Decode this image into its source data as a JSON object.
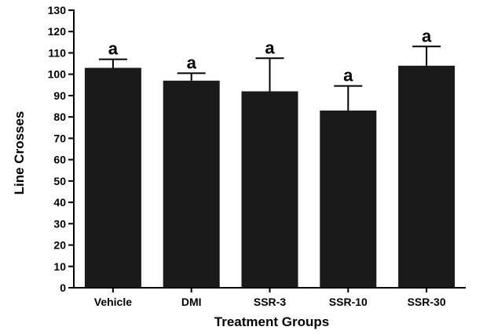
{
  "chart_data": {
    "type": "bar",
    "title": "",
    "xlabel": "Treatment Groups",
    "ylabel": "Line Crosses",
    "ylim": [
      0,
      130
    ],
    "yticks": [
      0,
      10,
      20,
      30,
      40,
      50,
      60,
      70,
      80,
      90,
      100,
      110,
      120,
      130
    ],
    "categories": [
      "Vehicle",
      "DMI",
      "SSR-3",
      "SSR-10",
      "SSR-30"
    ],
    "values": [
      103,
      97,
      92,
      83,
      104
    ],
    "error_upper": [
      4,
      3.5,
      15.5,
      11.5,
      9
    ],
    "annotations": [
      "a",
      "a",
      "a",
      "a",
      "a"
    ],
    "grid": false,
    "bar_color": "#1a1a1a"
  }
}
